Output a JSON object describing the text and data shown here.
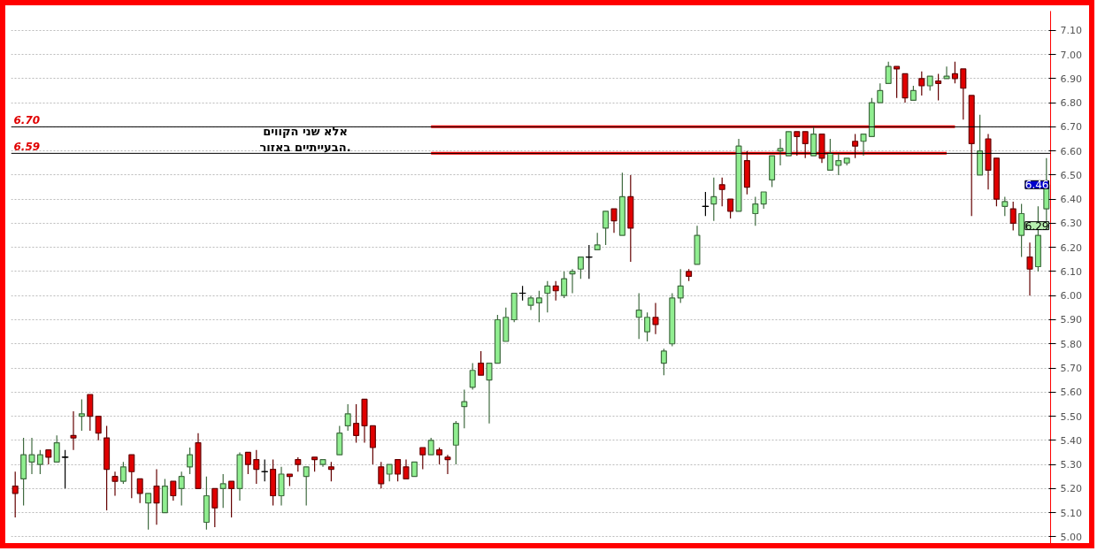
{
  "chart_data": {
    "type": "candlestick",
    "categories": [
      null,
      null,
      null,
      null,
      null,
      null,
      null,
      null,
      null,
      null,
      null,
      null,
      null,
      null,
      null,
      null,
      null,
      null,
      null,
      null,
      null,
      null,
      null,
      null,
      null,
      null,
      null,
      null,
      null,
      null,
      null,
      null,
      null,
      null,
      null,
      null,
      null,
      null,
      null,
      null,
      null,
      null,
      null,
      null,
      null,
      null,
      null,
      null,
      null,
      null,
      null,
      null,
      null,
      null,
      null,
      null,
      null,
      null,
      null,
      null,
      null,
      null,
      null,
      null,
      null,
      null,
      null,
      null,
      null,
      null,
      null,
      null,
      null,
      null,
      null,
      null,
      null,
      null,
      null,
      null,
      null,
      null,
      null,
      null,
      null,
      null,
      null,
      null,
      null,
      null,
      null,
      null,
      null,
      null,
      null,
      null,
      null,
      null,
      null,
      null,
      null,
      null,
      null,
      null,
      null,
      null,
      null,
      null,
      null,
      null,
      null,
      null,
      null,
      null,
      null,
      null,
      null,
      null,
      null,
      null,
      null,
      null,
      null,
      null,
      null
    ],
    "ohlc": [
      [
        5.21,
        5.27,
        5.08,
        5.18
      ],
      [
        5.24,
        5.41,
        5.13,
        5.34
      ],
      [
        5.31,
        5.41,
        5.26,
        5.34
      ],
      [
        5.3,
        5.36,
        5.26,
        5.34
      ],
      [
        5.36,
        5.36,
        5.3,
        5.33
      ],
      [
        5.31,
        5.42,
        5.31,
        5.39
      ],
      [
        5.33,
        5.36,
        5.2,
        5.33
      ],
      [
        5.42,
        5.52,
        5.36,
        5.41
      ],
      [
        5.5,
        5.57,
        5.44,
        5.51
      ],
      [
        5.59,
        5.59,
        5.44,
        5.5
      ],
      [
        5.5,
        5.5,
        5.4,
        5.43
      ],
      [
        5.41,
        5.46,
        5.11,
        5.28
      ],
      [
        5.25,
        5.27,
        5.17,
        5.23
      ],
      [
        5.23,
        5.31,
        5.22,
        5.29
      ],
      [
        5.34,
        5.34,
        5.16,
        5.27
      ],
      [
        5.24,
        5.24,
        5.14,
        5.18
      ],
      [
        5.14,
        5.18,
        5.03,
        5.18
      ],
      [
        5.21,
        5.28,
        5.05,
        5.14
      ],
      [
        5.1,
        5.24,
        5.1,
        5.21
      ],
      [
        5.23,
        5.23,
        5.15,
        5.17
      ],
      [
        5.2,
        5.27,
        5.13,
        5.25
      ],
      [
        5.29,
        5.37,
        5.26,
        5.34
      ],
      [
        5.39,
        5.43,
        5.2,
        5.2
      ],
      [
        5.06,
        5.25,
        5.03,
        5.17
      ],
      [
        5.2,
        5.2,
        5.04,
        5.12
      ],
      [
        5.2,
        5.26,
        5.12,
        5.22
      ],
      [
        5.23,
        5.23,
        5.08,
        5.2
      ],
      [
        5.2,
        5.35,
        5.15,
        5.34
      ],
      [
        5.35,
        5.35,
        5.26,
        5.3
      ],
      [
        5.32,
        5.36,
        5.22,
        5.28
      ],
      [
        5.27,
        5.32,
        5.23,
        5.27
      ],
      [
        5.28,
        5.32,
        5.13,
        5.17
      ],
      [
        5.17,
        5.29,
        5.13,
        5.26
      ],
      [
        5.26,
        5.26,
        5.21,
        5.25
      ],
      [
        5.32,
        5.33,
        5.27,
        5.3
      ],
      [
        5.25,
        5.29,
        5.13,
        5.29
      ],
      [
        5.33,
        5.33,
        5.27,
        5.32
      ],
      [
        5.3,
        5.32,
        5.29,
        5.32
      ],
      [
        5.29,
        5.31,
        5.23,
        5.28
      ],
      [
        5.34,
        5.46,
        5.34,
        5.43
      ],
      [
        5.46,
        5.55,
        5.44,
        5.51
      ],
      [
        5.47,
        5.55,
        5.39,
        5.42
      ],
      [
        5.57,
        5.57,
        5.39,
        5.46
      ],
      [
        5.46,
        5.46,
        5.3,
        5.37
      ],
      [
        5.29,
        5.31,
        5.2,
        5.22
      ],
      [
        5.26,
        5.3,
        5.23,
        5.3
      ],
      [
        5.32,
        5.32,
        5.23,
        5.26
      ],
      [
        5.29,
        5.32,
        5.24,
        5.24
      ],
      [
        5.25,
        5.31,
        5.25,
        5.31
      ],
      [
        5.37,
        5.37,
        5.28,
        5.34
      ],
      [
        5.34,
        5.41,
        5.34,
        5.4
      ],
      [
        5.36,
        5.37,
        5.3,
        5.34
      ],
      [
        5.33,
        5.34,
        5.26,
        5.32
      ],
      [
        5.38,
        5.48,
        5.3,
        5.47
      ],
      [
        5.54,
        5.61,
        5.45,
        5.56
      ],
      [
        5.62,
        5.72,
        5.61,
        5.69
      ],
      [
        5.72,
        5.77,
        5.67,
        5.67
      ],
      [
        5.65,
        5.72,
        5.47,
        5.72
      ],
      [
        5.72,
        5.92,
        5.72,
        5.9
      ],
      [
        5.81,
        5.95,
        5.81,
        5.91
      ],
      [
        5.9,
        6.01,
        5.89,
        6.01
      ],
      [
        6.01,
        6.04,
        5.98,
        6.01
      ],
      [
        5.96,
        6.0,
        5.94,
        5.99
      ],
      [
        5.97,
        6.02,
        5.89,
        5.99
      ],
      [
        6.01,
        6.06,
        5.93,
        6.04
      ],
      [
        6.04,
        6.06,
        5.98,
        6.02
      ],
      [
        6.0,
        6.1,
        5.99,
        6.07
      ],
      [
        6.09,
        6.11,
        6.01,
        6.1
      ],
      [
        6.11,
        6.16,
        6.07,
        6.16
      ],
      [
        6.16,
        6.21,
        6.07,
        6.16
      ],
      [
        6.19,
        6.26,
        6.19,
        6.21
      ],
      [
        6.28,
        6.35,
        6.21,
        6.35
      ],
      [
        6.36,
        6.36,
        6.26,
        6.31
      ],
      [
        6.25,
        6.51,
        6.25,
        6.41
      ],
      [
        6.41,
        6.5,
        6.14,
        6.28
      ],
      [
        5.91,
        6.01,
        5.82,
        5.94
      ],
      [
        5.85,
        5.93,
        5.81,
        5.91
      ],
      [
        5.91,
        5.97,
        5.84,
        5.88
      ],
      [
        5.72,
        5.78,
        5.67,
        5.77
      ],
      [
        5.8,
        6.01,
        5.79,
        5.99
      ],
      [
        5.99,
        6.11,
        5.97,
        6.04
      ],
      [
        6.1,
        6.11,
        6.06,
        6.08
      ],
      [
        6.13,
        6.29,
        6.13,
        6.25
      ],
      [
        6.37,
        6.43,
        6.33,
        6.37
      ],
      [
        6.38,
        6.49,
        6.31,
        6.41
      ],
      [
        6.46,
        6.49,
        6.37,
        6.44
      ],
      [
        6.4,
        6.4,
        6.32,
        6.35
      ],
      [
        6.35,
        6.65,
        6.35,
        6.62
      ],
      [
        6.56,
        6.6,
        6.42,
        6.45
      ],
      [
        6.34,
        6.41,
        6.29,
        6.38
      ],
      [
        6.38,
        6.43,
        6.36,
        6.43
      ],
      [
        6.48,
        6.58,
        6.45,
        6.58
      ],
      [
        6.6,
        6.65,
        6.54,
        6.61
      ],
      [
        6.58,
        6.68,
        6.58,
        6.68
      ],
      [
        6.68,
        6.68,
        6.58,
        6.66
      ],
      [
        6.68,
        6.68,
        6.57,
        6.63
      ],
      [
        6.58,
        6.7,
        6.58,
        6.67
      ],
      [
        6.67,
        6.67,
        6.55,
        6.57
      ],
      [
        6.52,
        6.65,
        6.52,
        6.59
      ],
      [
        6.54,
        6.59,
        6.5,
        6.56
      ],
      [
        6.55,
        6.57,
        6.54,
        6.57
      ],
      [
        6.64,
        6.67,
        6.57,
        6.62
      ],
      [
        6.64,
        6.67,
        6.58,
        6.67
      ],
      [
        6.66,
        6.82,
        6.66,
        6.8
      ],
      [
        6.8,
        6.88,
        6.8,
        6.85
      ],
      [
        6.88,
        6.97,
        6.88,
        6.95
      ],
      [
        6.95,
        6.95,
        6.82,
        6.94
      ],
      [
        6.92,
        6.92,
        6.8,
        6.82
      ],
      [
        6.81,
        6.87,
        6.81,
        6.85
      ],
      [
        6.9,
        6.93,
        6.83,
        6.87
      ],
      [
        6.87,
        6.91,
        6.85,
        6.91
      ],
      [
        6.89,
        6.92,
        6.81,
        6.88
      ],
      [
        6.9,
        6.95,
        6.9,
        6.91
      ],
      [
        6.92,
        6.97,
        6.88,
        6.9
      ],
      [
        6.94,
        6.94,
        6.73,
        6.86
      ],
      [
        6.83,
        6.83,
        6.33,
        6.63
      ],
      [
        6.5,
        6.75,
        6.5,
        6.6
      ],
      [
        6.65,
        6.67,
        6.44,
        6.52
      ],
      [
        6.57,
        6.57,
        6.37,
        6.4
      ],
      [
        6.37,
        6.41,
        6.33,
        6.39
      ],
      [
        6.36,
        6.39,
        6.27,
        6.3
      ],
      [
        6.25,
        6.38,
        6.16,
        6.34
      ],
      [
        6.16,
        6.22,
        6.0,
        6.11
      ],
      [
        6.12,
        6.37,
        6.1,
        6.25
      ],
      [
        6.36,
        6.57,
        6.31,
        6.46
      ]
    ],
    "colors": [
      "#e00000",
      "#90ee90",
      "#90ee90",
      "#90ee90",
      "#e00000",
      "#90ee90",
      "#000000",
      "#e00000",
      "#90ee90",
      "#e00000",
      "#e00000",
      "#e00000",
      "#e00000",
      "#90ee90",
      "#e00000",
      "#e00000",
      "#90ee90",
      "#e00000",
      "#90ee90",
      "#e00000",
      "#90ee90",
      "#90ee90",
      "#e00000",
      "#90ee90",
      "#e00000",
      "#90ee90",
      "#e00000",
      "#90ee90",
      "#e00000",
      "#e00000",
      "#000000",
      "#e00000",
      "#90ee90",
      "#e00000",
      "#e00000",
      "#90ee90",
      "#e00000",
      "#90ee90",
      "#e00000",
      "#90ee90",
      "#90ee90",
      "#e00000",
      "#e00000",
      "#e00000",
      "#e00000",
      "#90ee90",
      "#e00000",
      "#e00000",
      "#90ee90",
      "#e00000",
      "#90ee90",
      "#e00000",
      "#e00000",
      "#90ee90",
      "#90ee90",
      "#90ee90",
      "#e00000",
      "#90ee90",
      "#90ee90",
      "#90ee90",
      "#90ee90",
      "#000000",
      "#90ee90",
      "#90ee90",
      "#90ee90",
      "#e00000",
      "#90ee90",
      "#90ee90",
      "#90ee90",
      "#000000",
      "#90ee90",
      "#90ee90",
      "#e00000",
      "#90ee90",
      "#e00000",
      "#90ee90",
      "#90ee90",
      "#e00000",
      "#90ee90",
      "#90ee90",
      "#90ee90",
      "#e00000",
      "#90ee90",
      "#000000",
      "#90ee90",
      "#e00000",
      "#e00000",
      "#90ee90",
      "#e00000",
      "#90ee90",
      "#90ee90",
      "#90ee90",
      "#90ee90",
      "#90ee90",
      "#e00000",
      "#e00000",
      "#90ee90",
      "#e00000",
      "#90ee90",
      "#90ee90",
      "#90ee90",
      "#e00000",
      "#90ee90",
      "#90ee90",
      "#90ee90",
      "#90ee90",
      "#e00000",
      "#e00000",
      "#90ee90",
      "#e00000",
      "#90ee90",
      "#e00000",
      "#90ee90",
      "#e00000",
      "#e00000",
      "#e00000",
      "#90ee90",
      "#e00000",
      "#e00000",
      "#90ee90",
      "#e00000",
      "#90ee90",
      "#e00000",
      "#90ee90",
      "#90ee90"
    ],
    "series": [
      {
        "type": "line",
        "color": "#ff0000",
        "values": [
          null,
          null,
          null,
          null,
          null,
          null,
          null,
          null,
          null,
          null,
          null,
          null,
          null,
          null,
          null,
          null,
          null,
          null,
          null,
          null,
          null,
          null,
          null,
          null,
          null,
          null,
          null,
          null,
          null,
          null,
          null,
          null,
          null,
          null,
          null,
          null,
          null,
          null,
          null,
          null,
          null,
          null,
          null,
          null,
          null,
          null,
          null,
          null,
          null,
          null,
          6.7,
          6.7,
          6.7,
          6.7,
          6.7,
          6.7,
          6.7,
          6.7,
          6.7,
          6.7,
          6.7,
          6.7,
          6.7,
          6.7,
          6.7,
          6.7,
          6.7,
          6.7,
          6.7,
          6.7,
          6.7,
          6.7,
          6.7,
          6.7,
          6.7,
          6.7,
          6.7,
          6.7,
          6.7,
          6.7,
          6.7,
          6.7,
          6.7,
          6.7,
          6.7,
          6.7,
          6.7,
          6.7,
          6.7,
          6.7,
          6.7,
          6.7,
          6.7,
          6.7,
          6.7,
          6.7,
          6.7,
          6.7,
          6.7,
          6.7,
          6.7,
          6.7,
          6.7,
          6.7,
          6.7,
          6.7,
          6.7,
          6.7,
          6.7,
          6.7,
          6.7,
          6.7,
          6.7,
          6.7,
          null,
          null,
          null,
          null,
          null,
          null,
          null,
          null,
          null,
          null,
          null
        ]
      },
      {
        "type": "line",
        "color": "#ff0000",
        "values": [
          null,
          null,
          null,
          null,
          null,
          null,
          null,
          null,
          null,
          null,
          null,
          null,
          null,
          null,
          null,
          null,
          null,
          null,
          null,
          null,
          null,
          null,
          null,
          null,
          null,
          null,
          null,
          null,
          null,
          null,
          null,
          null,
          null,
          null,
          null,
          null,
          null,
          null,
          null,
          null,
          null,
          null,
          null,
          null,
          null,
          null,
          null,
          null,
          null,
          null,
          6.59,
          6.59,
          6.59,
          6.59,
          6.59,
          6.59,
          6.59,
          6.59,
          6.59,
          6.59,
          6.59,
          6.59,
          6.59,
          6.59,
          6.59,
          6.59,
          6.59,
          6.59,
          6.59,
          6.59,
          6.59,
          6.59,
          6.59,
          6.59,
          6.59,
          6.59,
          6.59,
          6.59,
          6.59,
          6.59,
          6.59,
          6.59,
          6.59,
          6.59,
          6.59,
          6.59,
          6.59,
          6.59,
          6.59,
          6.59,
          6.59,
          6.59,
          6.59,
          6.59,
          6.59,
          6.59,
          6.59,
          6.59,
          6.59,
          6.59,
          6.59,
          6.59,
          6.59,
          6.59,
          6.59,
          6.59,
          6.59,
          6.59,
          6.59,
          6.59,
          6.59,
          6.59,
          6.59,
          null,
          null,
          null,
          null,
          null,
          null,
          null,
          null,
          null,
          null,
          null,
          null
        ]
      }
    ],
    "ref_lines": [
      {
        "axis": "y",
        "value": 6.7,
        "label": "6.70",
        "color": "#000000"
      },
      {
        "axis": "y",
        "value": 6.59,
        "label": "6.59",
        "color": "#000000"
      }
    ],
    "annotations": [
      "אלא שני הקווים\nהבעייתיים באזור.",
      {
        "text": "6.46",
        "y": 6.46
      },
      {
        "text": "6.29",
        "y": 6.29
      }
    ],
    "ylim": [
      4.95,
      7.18
    ],
    "yticks": [
      {
        "value": 5.0,
        "label": "5.00"
      },
      {
        "value": 5.1,
        "label": "5.10"
      },
      {
        "value": 5.2,
        "label": "5.20"
      },
      {
        "value": 5.3,
        "label": "5.30"
      },
      {
        "value": 5.4,
        "label": "5.40"
      },
      {
        "value": 5.5,
        "label": "5.50"
      },
      {
        "value": 5.6,
        "label": "5.60"
      },
      {
        "value": 5.7,
        "label": "5.70"
      },
      {
        "value": 5.8,
        "label": "5.80"
      },
      {
        "value": 5.9,
        "label": "5.90"
      },
      {
        "value": 6.0,
        "label": "6.00"
      },
      {
        "value": 6.1,
        "label": "6.10"
      },
      {
        "value": 6.2,
        "label": "6.20"
      },
      {
        "value": 6.3,
        "label": "6.30"
      },
      {
        "value": 6.4,
        "label": "6.40"
      },
      {
        "value": 6.5,
        "label": "6.50"
      },
      {
        "value": 6.6,
        "label": "6.60"
      },
      {
        "value": 6.7,
        "label": "6.70"
      },
      {
        "value": 6.8,
        "label": "6.80"
      },
      {
        "value": 6.9,
        "label": "6.90"
      },
      {
        "value": 7.0,
        "label": "7.00"
      },
      {
        "value": 7.1,
        "label": "7.10"
      }
    ],
    "grid": "y",
    "tick_labels": "y"
  }
}
